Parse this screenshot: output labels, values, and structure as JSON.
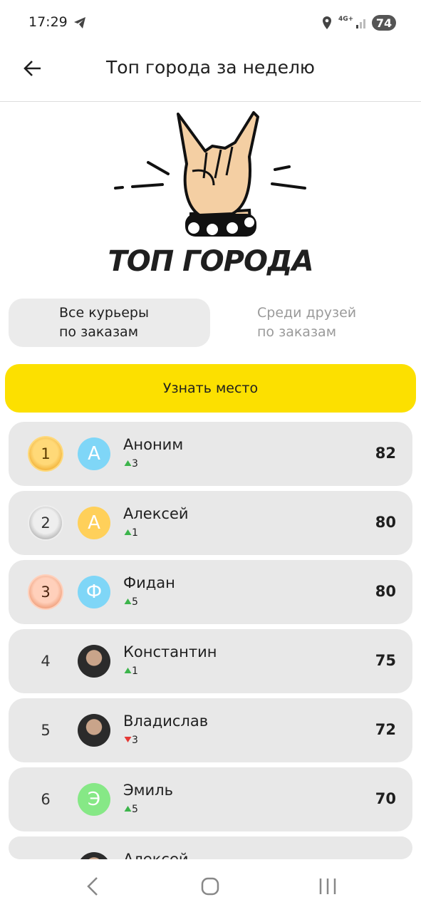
{
  "status_bar": {
    "time": "17:29",
    "network": "4G+",
    "battery": "74"
  },
  "header": {
    "title": "Топ города за неделю"
  },
  "hero": {
    "title": "ТОП ГОРОДА"
  },
  "tabs": [
    {
      "lines": [
        "Все курьеры",
        "по заказам"
      ],
      "selected": true
    },
    {
      "lines": [
        "Среди друзей",
        "по заказам"
      ],
      "selected": false
    }
  ],
  "button": {
    "label": "Узнать место"
  },
  "leaderboard": [
    {
      "rank": "1",
      "medal": "gold",
      "avatar": {
        "kind": "letter",
        "letter": "А",
        "color": "#7fd6f7"
      },
      "name": "Аноним",
      "change": {
        "direction": "up",
        "value": "3"
      },
      "score": "82"
    },
    {
      "rank": "2",
      "medal": "silver",
      "avatar": {
        "kind": "letter",
        "letter": "А",
        "color": "#ffd05a"
      },
      "name": "Алексей",
      "change": {
        "direction": "up",
        "value": "1"
      },
      "score": "80"
    },
    {
      "rank": "3",
      "medal": "bronze",
      "avatar": {
        "kind": "letter",
        "letter": "Ф",
        "color": "#7fd6f7"
      },
      "name": "Фидан",
      "change": {
        "direction": "up",
        "value": "5"
      },
      "score": "80"
    },
    {
      "rank": "4",
      "avatar": {
        "kind": "photo"
      },
      "name": "Константин",
      "change": {
        "direction": "up",
        "value": "1"
      },
      "score": "75"
    },
    {
      "rank": "5",
      "avatar": {
        "kind": "photo"
      },
      "name": "Владислав",
      "change": {
        "direction": "down",
        "value": "3"
      },
      "score": "72"
    },
    {
      "rank": "6",
      "avatar": {
        "kind": "letter",
        "letter": "Э",
        "color": "#86e886"
      },
      "name": "Эмиль",
      "change": {
        "direction": "up",
        "value": "5"
      },
      "score": "70"
    },
    {
      "avatar": {
        "kind": "photo"
      },
      "name": "Алексей"
    }
  ]
}
